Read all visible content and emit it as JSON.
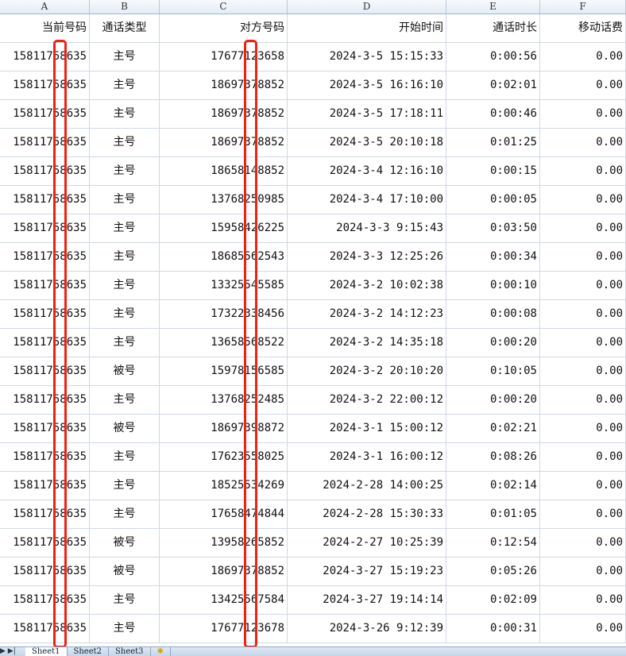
{
  "columns": [
    "A",
    "B",
    "C",
    "D",
    "E",
    "F"
  ],
  "headers": [
    "当前号码",
    "通话类型",
    "对方号码",
    "开始时间",
    "通话时长",
    "移动话费"
  ],
  "rows": [
    [
      "15811758635",
      "主号",
      "17677123658",
      "2024-3-5 15:15:33",
      "0:00:56",
      "0.00"
    ],
    [
      "15811758635",
      "主号",
      "18697378852",
      "2024-3-5 16:16:10",
      "0:02:01",
      "0.00"
    ],
    [
      "15811758635",
      "主号",
      "18697378852",
      "2024-3-5 17:18:11",
      "0:00:46",
      "0.00"
    ],
    [
      "15811758635",
      "主号",
      "18697378852",
      "2024-3-5 20:10:18",
      "0:01:25",
      "0.00"
    ],
    [
      "15811758635",
      "主号",
      "18658148852",
      "2024-3-4 12:16:10",
      "0:00:15",
      "0.00"
    ],
    [
      "15811758635",
      "主号",
      "13768250985",
      "2024-3-4 17:10:00",
      "0:00:05",
      "0.00"
    ],
    [
      "15811758635",
      "主号",
      "15958426225",
      "2024-3-3 9:15:43",
      "0:03:50",
      "0.00"
    ],
    [
      "15811758635",
      "主号",
      "18685562543",
      "2024-3-3 12:25:26",
      "0:00:34",
      "0.00"
    ],
    [
      "15811758635",
      "主号",
      "13325545585",
      "2024-3-2 10:02:38",
      "0:00:10",
      "0.00"
    ],
    [
      "15811758635",
      "主号",
      "17322338456",
      "2024-3-2 14:12:23",
      "0:00:08",
      "0.00"
    ],
    [
      "15811758635",
      "主号",
      "13658568522",
      "2024-3-2 14:35:18",
      "0:00:20",
      "0.00"
    ],
    [
      "15811758635",
      "被号",
      "15978156585",
      "2024-3-2 20:10:20",
      "0:10:05",
      "0.00"
    ],
    [
      "15811758635",
      "主号",
      "13768252485",
      "2024-3-2 22:00:12",
      "0:00:20",
      "0.00"
    ],
    [
      "15811758635",
      "被号",
      "18697398872",
      "2024-3-1 15:00:12",
      "0:02:21",
      "0.00"
    ],
    [
      "15811758635",
      "主号",
      "17623558025",
      "2024-3-1 16:00:12",
      "0:08:26",
      "0.00"
    ],
    [
      "15811758635",
      "主号",
      "18525534269",
      "2024-2-28 14:00:25",
      "0:02:14",
      "0.00"
    ],
    [
      "15811758635",
      "主号",
      "17658474844",
      "2024-2-28 15:30:33",
      "0:01:05",
      "0.00"
    ],
    [
      "15811758635",
      "被号",
      "13958265852",
      "2024-2-27 10:25:39",
      "0:12:54",
      "0.00"
    ],
    [
      "15811758635",
      "被号",
      "18697378852",
      "2024-3-27 15:19:23",
      "0:05:26",
      "0.00"
    ],
    [
      "15811758635",
      "主号",
      "13425567584",
      "2024-3-27 19:14:14",
      "0:02:09",
      "0.00"
    ],
    [
      "15811758635",
      "主号",
      "17677123678",
      "2024-3-26 9:12:39",
      "0:00:31",
      "0.00"
    ]
  ],
  "sheet_tabs": [
    "Sheet1",
    "Sheet2",
    "Sheet3"
  ],
  "nav_arrows": "▶ ▶|",
  "highlight_color": "#ee2211"
}
